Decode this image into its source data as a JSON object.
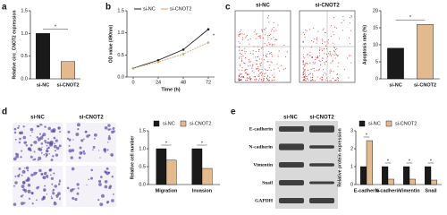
{
  "panel_labels": [
    "a",
    "b",
    "c",
    "d",
    "e"
  ],
  "flow_cytometry": {
    "samples": [
      "si-NC",
      "si-CNOT2"
    ]
  },
  "transwell": {
    "samples": [
      "si-NC",
      "si-CNOT2"
    ]
  },
  "western_blot": {
    "samples": [
      "si-NC",
      "si-CNOT2"
    ],
    "proteins": [
      "E-cadherin",
      "N-cadherin",
      "Vimentin",
      "Snail",
      "GAPDH"
    ]
  },
  "chart_data": [
    {
      "type": "bar",
      "y_label": "Relative circ_CNOT2 expression",
      "categories": [
        "si-NC",
        "si-CNOT2"
      ],
      "values": [
        1.0,
        0.38
      ],
      "colors": [
        "#1a1a1a",
        "#e3b98f"
      ],
      "ylim": [
        0,
        1.5
      ],
      "yticks": [
        {
          "value": 0,
          "label": "0.0"
        },
        0.5,
        {
          "value": 1,
          "label": "1.0"
        },
        1.5
      ],
      "annotations": [
        "*"
      ]
    },
    {
      "type": "line",
      "x_label": "Time (h)",
      "y_label": "OD value (490nm)",
      "x": [
        0,
        24,
        48,
        72
      ],
      "xlim": [
        -6,
        78
      ],
      "xticks": [
        0,
        24,
        48,
        72
      ],
      "series": [
        {
          "name": "si-NC",
          "color": "#1a1a1a",
          "values": [
            0.2,
            0.38,
            0.62,
            1.08
          ]
        },
        {
          "name": "si-CNOT2",
          "color": "#d9a36a",
          "values": [
            0.2,
            0.34,
            0.52,
            0.78
          ]
        }
      ],
      "ylim": [
        0,
        1.5
      ],
      "yticks": [
        {
          "value": 0,
          "label": "0.0"
        },
        0.5,
        {
          "value": 1,
          "label": "1.0"
        },
        1.5
      ],
      "annotations": [
        "*"
      ]
    },
    {
      "type": "bar",
      "y_label": "Apoptosis rate (%)",
      "categories": [
        "si-NC",
        "si-CNOT2"
      ],
      "values": [
        9,
        16
      ],
      "colors": [
        "#1a1a1a",
        "#e3b98f"
      ],
      "ylim": [
        0,
        20
      ],
      "yticks": [
        0,
        5,
        10,
        15,
        20
      ],
      "annotations": [
        "*"
      ]
    },
    {
      "type": "bar",
      "y_label": "Relative cell number",
      "categories": [
        "Migration",
        "Invasion"
      ],
      "series": [
        {
          "name": "si-NC",
          "color": "#1a1a1a",
          "values": [
            1.0,
            1.0
          ]
        },
        {
          "name": "si-CNOT2",
          "color": "#e3b98f",
          "values": [
            0.68,
            0.45
          ]
        }
      ],
      "ylim": [
        0,
        1.5
      ],
      "yticks": [
        {
          "value": 0,
          "label": "0.0"
        },
        0.5,
        {
          "value": 1,
          "label": "1.0"
        },
        1.5
      ],
      "annotations": [
        "*",
        "*"
      ]
    },
    {
      "type": "bar",
      "y_label": "Relative protein expression",
      "categories": [
        "E-cadherin",
        "N-cadherin",
        "Vimentin",
        "Snail"
      ],
      "series": [
        {
          "name": "si-NC",
          "color": "#1a1a1a",
          "values": [
            1,
            1,
            1,
            1
          ]
        },
        {
          "name": "si-CNOT2",
          "color": "#e3b98f",
          "values": [
            2.45,
            0.3,
            0.3,
            0.25
          ]
        }
      ],
      "ylim": [
        0,
        3
      ],
      "yticks": [
        0,
        1,
        2,
        3
      ],
      "annotations": [
        "*",
        "*",
        "*",
        "*"
      ]
    }
  ]
}
